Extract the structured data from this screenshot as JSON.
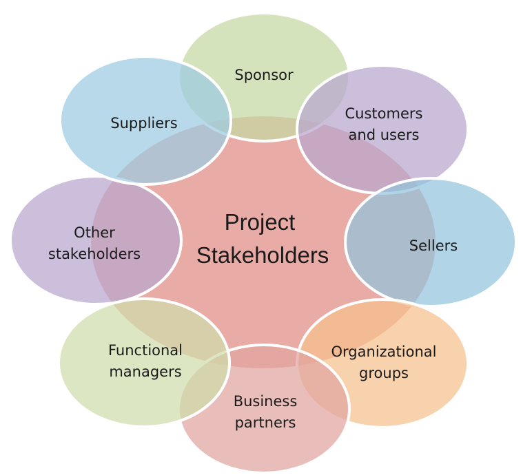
{
  "center": {
    "line1": "Project",
    "line2": "Stakeholders",
    "color": "#e8aba6"
  },
  "stakeholders": [
    {
      "id": "sponsor",
      "lines": [
        "Sponsor"
      ],
      "color": "#c5d8a4"
    },
    {
      "id": "customers-and-users",
      "lines": [
        "Customers",
        "and users"
      ],
      "color": "#b8a6cf"
    },
    {
      "id": "sellers",
      "lines": [
        "Sellers"
      ],
      "color": "#93c4dd"
    },
    {
      "id": "organizational-groups",
      "lines": [
        "Organizational",
        "groups"
      ],
      "color": "#f5c08c"
    },
    {
      "id": "business-partners",
      "lines": [
        "Business",
        "partners"
      ],
      "color": "#e0a3a0"
    },
    {
      "id": "functional-managers",
      "lines": [
        "Functional",
        "managers"
      ],
      "color": "#cfdcaa"
    },
    {
      "id": "other-stakeholders",
      "lines": [
        "Other",
        "stakeholders"
      ],
      "color": "#b8a6cf"
    },
    {
      "id": "suppliers",
      "lines": [
        "Suppliers"
      ],
      "color": "#9ccbe0"
    }
  ]
}
